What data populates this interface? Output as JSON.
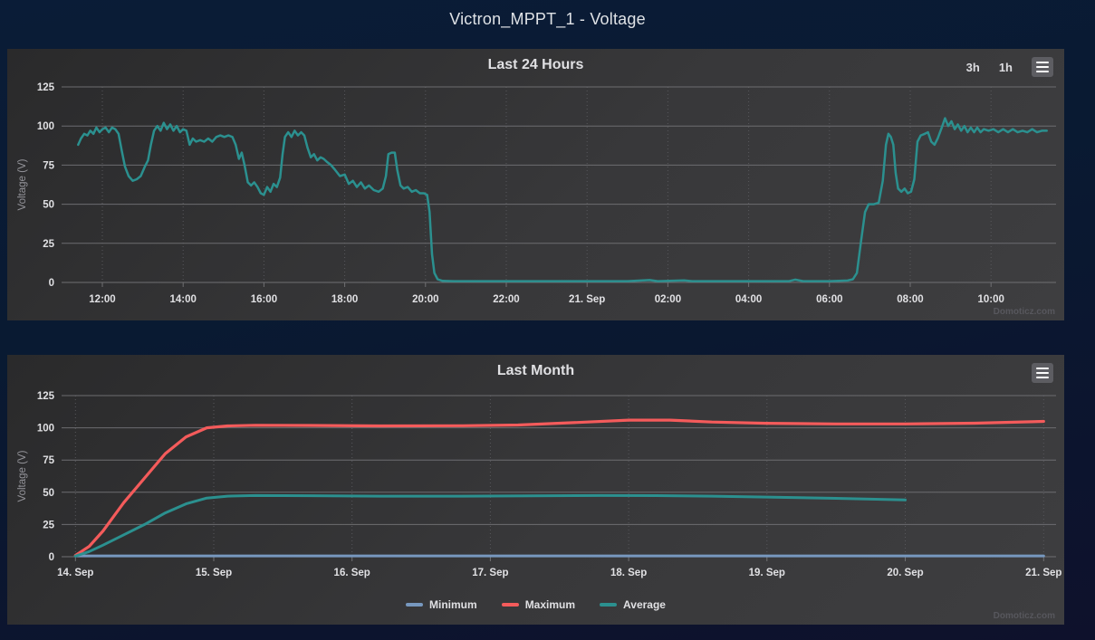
{
  "page": {
    "title": "Victron_MPPT_1 - Voltage",
    "credit": "Domoticz.com"
  },
  "colors": {
    "teal": "#2b908f",
    "red": "#f45b5b",
    "blue": "#7798bf",
    "grid": "#6d6d70",
    "axis": "#707073",
    "tick_label": "#e0e0e3",
    "axis_title": "#94949a"
  },
  "chart_data": [
    {
      "type": "line",
      "title": "Last 24 Hours",
      "xlabel": "",
      "ylabel": "Voltage (V)",
      "ylim": [
        0,
        125
      ],
      "yticks": [
        0,
        25,
        50,
        75,
        100,
        125
      ],
      "xlim": [
        10.99,
        35.61
      ],
      "grid": true,
      "legend_position": "none",
      "range_buttons": [
        "3h",
        "1h"
      ],
      "xticks": [
        {
          "v": 12,
          "label": "12:00"
        },
        {
          "v": 14,
          "label": "14:00"
        },
        {
          "v": 16,
          "label": "16:00"
        },
        {
          "v": 18,
          "label": "18:00"
        },
        {
          "v": 20,
          "label": "20:00"
        },
        {
          "v": 22,
          "label": "22:00"
        },
        {
          "v": 24,
          "label": "21. Sep"
        },
        {
          "v": 26,
          "label": "02:00"
        },
        {
          "v": 28,
          "label": "04:00"
        },
        {
          "v": 30,
          "label": "06:00"
        },
        {
          "v": 32,
          "label": "08:00"
        },
        {
          "v": 34,
          "label": "10:00"
        }
      ],
      "series": [
        {
          "name": "Voltage",
          "color": "#2b908f",
          "width": 2.5,
          "in_legend": false,
          "points": [
            [
              11.4,
              88
            ],
            [
              11.47,
              92
            ],
            [
              11.55,
              95
            ],
            [
              11.63,
              94
            ],
            [
              11.7,
              97
            ],
            [
              11.78,
              95
            ],
            [
              11.85,
              99
            ],
            [
              11.93,
              96
            ],
            [
              12.0,
              98
            ],
            [
              12.08,
              99
            ],
            [
              12.16,
              96
            ],
            [
              12.24,
              99
            ],
            [
              12.32,
              98
            ],
            [
              12.4,
              95
            ],
            [
              12.48,
              84
            ],
            [
              12.56,
              74
            ],
            [
              12.65,
              68
            ],
            [
              12.75,
              65
            ],
            [
              12.85,
              66
            ],
            [
              12.95,
              68
            ],
            [
              13.05,
              74
            ],
            [
              13.13,
              78
            ],
            [
              13.2,
              88
            ],
            [
              13.28,
              97
            ],
            [
              13.36,
              100
            ],
            [
              13.44,
              97
            ],
            [
              13.52,
              102
            ],
            [
              13.6,
              98
            ],
            [
              13.68,
              101
            ],
            [
              13.76,
              97
            ],
            [
              13.84,
              100
            ],
            [
              13.92,
              96
            ],
            [
              14.0,
              98
            ],
            [
              14.08,
              97
            ],
            [
              14.16,
              88
            ],
            [
              14.24,
              92
            ],
            [
              14.32,
              90
            ],
            [
              14.42,
              91
            ],
            [
              14.52,
              90
            ],
            [
              14.62,
              92
            ],
            [
              14.72,
              90
            ],
            [
              14.82,
              93
            ],
            [
              14.92,
              94
            ],
            [
              15.02,
              93
            ],
            [
              15.12,
              94
            ],
            [
              15.22,
              93
            ],
            [
              15.3,
              88
            ],
            [
              15.38,
              79
            ],
            [
              15.45,
              83
            ],
            [
              15.52,
              75
            ],
            [
              15.6,
              64
            ],
            [
              15.68,
              62
            ],
            [
              15.76,
              64
            ],
            [
              15.84,
              61
            ],
            [
              15.92,
              57
            ],
            [
              16.0,
              56
            ],
            [
              16.08,
              61
            ],
            [
              16.16,
              58
            ],
            [
              16.24,
              63
            ],
            [
              16.32,
              61
            ],
            [
              16.4,
              67
            ],
            [
              16.46,
              82
            ],
            [
              16.52,
              93
            ],
            [
              16.6,
              96
            ],
            [
              16.68,
              93
            ],
            [
              16.76,
              97
            ],
            [
              16.84,
              94
            ],
            [
              16.92,
              96
            ],
            [
              17.0,
              94
            ],
            [
              17.08,
              86
            ],
            [
              17.16,
              80
            ],
            [
              17.24,
              82
            ],
            [
              17.32,
              78
            ],
            [
              17.4,
              80
            ],
            [
              17.48,
              79
            ],
            [
              17.56,
              77
            ],
            [
              17.66,
              75
            ],
            [
              17.76,
              72
            ],
            [
              17.88,
              68
            ],
            [
              18.0,
              69
            ],
            [
              18.1,
              63
            ],
            [
              18.2,
              65
            ],
            [
              18.3,
              61
            ],
            [
              18.4,
              64
            ],
            [
              18.5,
              60
            ],
            [
              18.6,
              62
            ],
            [
              18.72,
              59
            ],
            [
              18.84,
              58
            ],
            [
              18.94,
              60
            ],
            [
              19.02,
              68
            ],
            [
              19.08,
              82
            ],
            [
              19.16,
              83
            ],
            [
              19.24,
              83
            ],
            [
              19.3,
              72
            ],
            [
              19.38,
              62
            ],
            [
              19.46,
              60
            ],
            [
              19.56,
              61
            ],
            [
              19.66,
              58
            ],
            [
              19.76,
              59
            ],
            [
              19.86,
              57
            ],
            [
              19.96,
              57
            ],
            [
              20.04,
              56
            ],
            [
              20.1,
              45
            ],
            [
              20.16,
              18
            ],
            [
              20.22,
              6
            ],
            [
              20.3,
              2
            ],
            [
              20.42,
              1
            ],
            [
              20.7,
              0.8
            ],
            [
              21.5,
              0.8
            ],
            [
              22.5,
              0.8
            ],
            [
              23.5,
              0.8
            ],
            [
              24.5,
              0.8
            ],
            [
              25.0,
              0.8
            ],
            [
              25.55,
              1.5
            ],
            [
              25.75,
              0.8
            ],
            [
              26.4,
              1.3
            ],
            [
              26.6,
              0.8
            ],
            [
              27.5,
              0.8
            ],
            [
              28.5,
              0.8
            ],
            [
              29.0,
              0.8
            ],
            [
              29.15,
              1.8
            ],
            [
              29.35,
              0.8
            ],
            [
              30.0,
              0.8
            ],
            [
              30.45,
              1.2
            ],
            [
              30.58,
              2
            ],
            [
              30.68,
              6
            ],
            [
              30.78,
              26
            ],
            [
              30.88,
              45
            ],
            [
              30.97,
              50
            ],
            [
              31.1,
              50
            ],
            [
              31.22,
              51
            ],
            [
              31.32,
              65
            ],
            [
              31.4,
              88
            ],
            [
              31.46,
              95
            ],
            [
              31.52,
              93
            ],
            [
              31.58,
              88
            ],
            [
              31.64,
              70
            ],
            [
              31.7,
              60
            ],
            [
              31.78,
              58
            ],
            [
              31.86,
              60
            ],
            [
              31.94,
              57
            ],
            [
              32.02,
              58
            ],
            [
              32.1,
              66
            ],
            [
              32.18,
              90
            ],
            [
              32.26,
              94
            ],
            [
              32.36,
              95
            ],
            [
              32.44,
              96
            ],
            [
              32.52,
              90
            ],
            [
              32.6,
              88
            ],
            [
              32.68,
              92
            ],
            [
              32.78,
              99
            ],
            [
              32.86,
              105
            ],
            [
              32.94,
              100
            ],
            [
              33.02,
              103
            ],
            [
              33.1,
              98
            ],
            [
              33.18,
              101
            ],
            [
              33.26,
              97
            ],
            [
              33.34,
              100
            ],
            [
              33.42,
              96
            ],
            [
              33.5,
              99
            ],
            [
              33.58,
              96
            ],
            [
              33.66,
              99
            ],
            [
              33.74,
              96
            ],
            [
              33.82,
              98
            ],
            [
              33.94,
              97
            ],
            [
              34.06,
              98
            ],
            [
              34.18,
              96
            ],
            [
              34.3,
              98
            ],
            [
              34.42,
              96
            ],
            [
              34.54,
              98
            ],
            [
              34.66,
              96
            ],
            [
              34.78,
              97
            ],
            [
              34.9,
              96
            ],
            [
              35.02,
              98
            ],
            [
              35.14,
              96
            ],
            [
              35.26,
              97
            ],
            [
              35.38,
              97
            ]
          ]
        }
      ]
    },
    {
      "type": "line",
      "title": "Last Month",
      "xlabel": "",
      "ylabel": "Voltage (V)",
      "ylim": [
        0,
        125
      ],
      "yticks": [
        0,
        25,
        50,
        75,
        100,
        125
      ],
      "xlim": [
        13.9,
        21.09
      ],
      "grid": true,
      "legend_position": "bottom",
      "range_buttons": [],
      "xticks": [
        {
          "v": 14,
          "label": "14. Sep"
        },
        {
          "v": 15,
          "label": "15. Sep"
        },
        {
          "v": 16,
          "label": "16. Sep"
        },
        {
          "v": 17,
          "label": "17. Sep"
        },
        {
          "v": 18,
          "label": "18. Sep"
        },
        {
          "v": 19,
          "label": "19. Sep"
        },
        {
          "v": 20,
          "label": "20. Sep"
        },
        {
          "v": 21,
          "label": "21. Sep"
        }
      ],
      "series": [
        {
          "name": "Minimum",
          "color": "#7798bf",
          "width": 3,
          "in_legend": true,
          "points": [
            [
              14,
              0.6
            ],
            [
              15,
              0.6
            ],
            [
              16,
              0.6
            ],
            [
              17,
              0.6
            ],
            [
              18,
              0.6
            ],
            [
              19,
              0.6
            ],
            [
              20,
              0.6
            ],
            [
              21,
              0.6
            ]
          ]
        },
        {
          "name": "Maximum",
          "color": "#f45b5b",
          "width": 3.2,
          "in_legend": true,
          "points": [
            [
              14,
              1
            ],
            [
              14.1,
              8
            ],
            [
              14.2,
              20
            ],
            [
              14.35,
              42
            ],
            [
              14.5,
              61
            ],
            [
              14.65,
              80
            ],
            [
              14.8,
              93
            ],
            [
              14.95,
              100
            ],
            [
              15.1,
              101.5
            ],
            [
              15.3,
              102
            ],
            [
              15.7,
              101.8
            ],
            [
              16.2,
              101.5
            ],
            [
              16.8,
              101.6
            ],
            [
              17.2,
              102.2
            ],
            [
              17.6,
              104
            ],
            [
              18.0,
              106
            ],
            [
              18.3,
              106
            ],
            [
              18.6,
              104.5
            ],
            [
              19.0,
              103.5
            ],
            [
              19.5,
              103
            ],
            [
              20.0,
              103
            ],
            [
              20.5,
              103.6
            ],
            [
              21.0,
              105
            ]
          ]
        },
        {
          "name": "Average",
          "color": "#2b908f",
          "width": 3,
          "in_legend": true,
          "points": [
            [
              14,
              0.5
            ],
            [
              14.1,
              4
            ],
            [
              14.2,
              9
            ],
            [
              14.35,
              17
            ],
            [
              14.5,
              25
            ],
            [
              14.65,
              34
            ],
            [
              14.8,
              41
            ],
            [
              14.95,
              45.5
            ],
            [
              15.1,
              47
            ],
            [
              15.3,
              47.5
            ],
            [
              15.7,
              47.3
            ],
            [
              16.2,
              47
            ],
            [
              16.8,
              47
            ],
            [
              17.3,
              47.2
            ],
            [
              17.8,
              47.5
            ],
            [
              18.2,
              47.4
            ],
            [
              18.6,
              47
            ],
            [
              19.0,
              46.3
            ],
            [
              19.5,
              45.3
            ],
            [
              20.0,
              44
            ]
          ]
        }
      ]
    }
  ]
}
